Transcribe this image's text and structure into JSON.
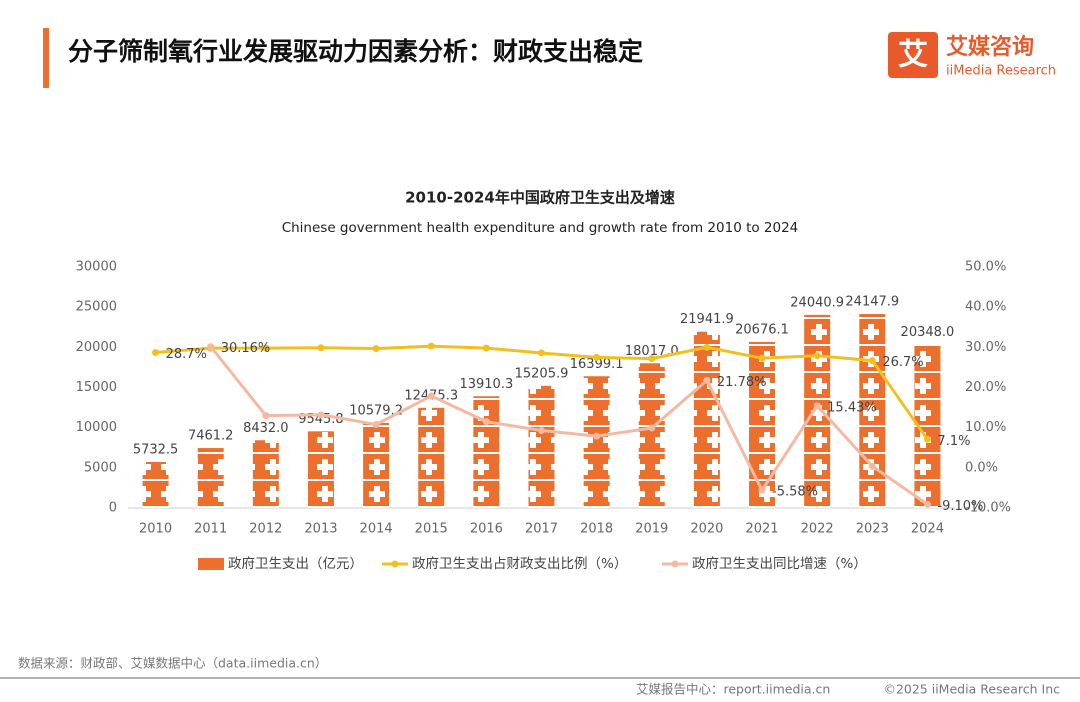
{
  "header": {
    "title": "分子筛制氧行业发展驱动力因素分析：财政支出稳定",
    "logo_mark": "艾",
    "logo_name": "艾媒咨询",
    "logo_sub": "iiMedia Research"
  },
  "footer": {
    "source": "数据来源：财政部、艾媒数据中心（data.iimedia.cn）",
    "site": "艾媒报告中心：report.iimedia.cn",
    "copyright": "©2025  iiMedia Research  Inc"
  },
  "chart_data": {
    "type": "bar-line",
    "title": "2010-2024年中国政府卫生支出及增速",
    "subtitle": "Chinese government health expenditure and growth rate from 2010 to 2024",
    "categories": [
      "2010",
      "2011",
      "2012",
      "2013",
      "2014",
      "2015",
      "2016",
      "2017",
      "2018",
      "2019",
      "2020",
      "2021",
      "2022",
      "2023",
      "2024"
    ],
    "ylim": [
      0,
      30000
    ],
    "yticks": [
      0,
      5000,
      10000,
      15000,
      20000,
      25000,
      30000
    ],
    "y2lim": [
      -10,
      50
    ],
    "y2ticks": [
      {
        "value": -10,
        "label": "-10.0%"
      },
      {
        "value": 0,
        "label": "0.0%"
      },
      {
        "value": 10,
        "label": "10.0%"
      },
      {
        "value": 20,
        "label": "20.0%"
      },
      {
        "value": 30,
        "label": "30.0%"
      },
      {
        "value": 40,
        "label": "40.0%"
      },
      {
        "value": 50,
        "label": "50.0%"
      }
    ],
    "series": [
      {
        "name": "政府卫生支出（亿元）",
        "type": "bar",
        "color": "#ec6f2d",
        "values": [
          5732.5,
          7461.2,
          8432.0,
          9545.8,
          10579.2,
          12475.3,
          13910.3,
          15205.9,
          16399.1,
          18017.0,
          21941.9,
          20676.1,
          24040.9,
          24147.9,
          20348.0
        ],
        "value_labels": [
          "5732.5",
          "7461.2",
          "8432.0",
          "9545.8",
          "10579.2",
          "12475.3",
          "13910.3",
          "15205.9",
          "16399.1",
          "18017.0",
          "21941.9",
          "20676.1",
          "24040.9",
          "24147.9",
          "20348.0"
        ]
      },
      {
        "name": "政府卫生支出占财政支出比例（%）",
        "type": "line",
        "axis": "y2",
        "color": "#f2c01e",
        "values": [
          28.7,
          29.8,
          29.8,
          29.9,
          29.7,
          30.3,
          29.8,
          28.6,
          27.5,
          27.2,
          30.0,
          27.3,
          27.9,
          26.7,
          7.1
        ],
        "value_labels": [
          "28.7%",
          null,
          null,
          null,
          null,
          null,
          null,
          null,
          null,
          null,
          null,
          null,
          null,
          "26.7%",
          "7.1%"
        ]
      },
      {
        "name": "政府卫生支出同比增速（%）",
        "type": "line",
        "axis": "y2",
        "color": "#f4b9a3",
        "values": [
          null,
          30.16,
          13.0,
          13.2,
          10.8,
          17.9,
          11.5,
          9.3,
          7.9,
          9.9,
          21.78,
          -5.58,
          15.43,
          0.4,
          -9.1
        ],
        "value_labels": [
          null,
          "30.16%",
          null,
          null,
          null,
          null,
          null,
          null,
          null,
          null,
          "21.78%",
          "-5.58%",
          "15.43%",
          null,
          "-9.10%"
        ]
      }
    ]
  }
}
